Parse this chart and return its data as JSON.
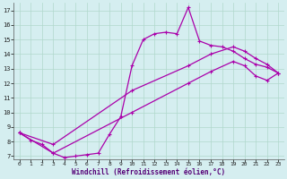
{
  "xlabel": "Windchill (Refroidissement éolien,°C)",
  "ylabel": "",
  "xlim": [
    -0.5,
    23.5
  ],
  "ylim": [
    6.8,
    17.5
  ],
  "yticks": [
    7,
    8,
    9,
    10,
    11,
    12,
    13,
    14,
    15,
    16,
    17
  ],
  "xticks": [
    0,
    1,
    2,
    3,
    4,
    5,
    6,
    7,
    8,
    9,
    10,
    11,
    12,
    13,
    14,
    15,
    16,
    17,
    18,
    19,
    20,
    21,
    22,
    23
  ],
  "background_color": "#d5eef0",
  "grid_color": "#b0d8cc",
  "line_color": "#aa00aa",
  "lines": [
    {
      "x": [
        0,
        1,
        2,
        3,
        4,
        5,
        6,
        7,
        8,
        9,
        10,
        11,
        12,
        13,
        14,
        15,
        16,
        17,
        18,
        19,
        20,
        21,
        22,
        23
      ],
      "y": [
        8.6,
        8.1,
        7.8,
        7.2,
        6.9,
        7.0,
        7.1,
        7.2,
        8.5,
        9.7,
        13.2,
        15.0,
        15.4,
        15.5,
        15.4,
        17.2,
        14.9,
        14.6,
        14.5,
        14.2,
        13.7,
        13.3,
        13.1,
        12.7
      ]
    },
    {
      "x": [
        0,
        3,
        10,
        15,
        17,
        19,
        20,
        21,
        22,
        23
      ],
      "y": [
        8.6,
        7.8,
        11.5,
        13.2,
        14.0,
        14.5,
        14.2,
        13.7,
        13.3,
        12.7
      ]
    },
    {
      "x": [
        0,
        3,
        10,
        15,
        17,
        19,
        20,
        21,
        22,
        23
      ],
      "y": [
        8.6,
        7.2,
        10.0,
        12.0,
        12.8,
        13.5,
        13.2,
        12.5,
        12.2,
        12.7
      ]
    }
  ]
}
